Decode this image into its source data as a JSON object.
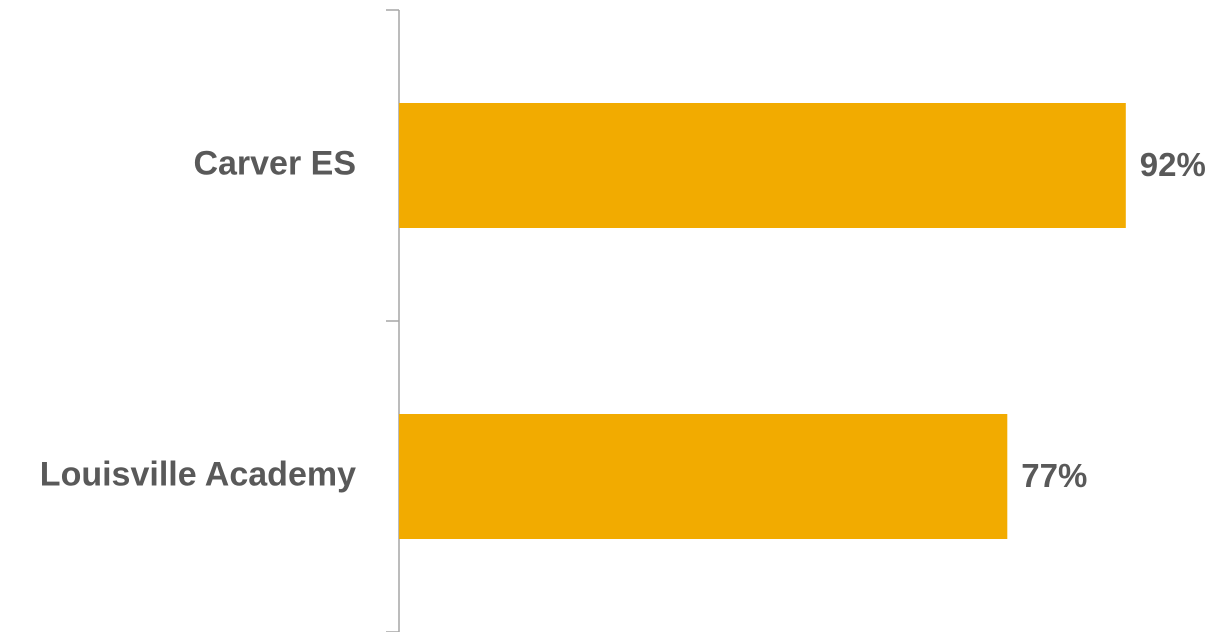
{
  "chart_data": {
    "type": "bar",
    "orientation": "horizontal",
    "categories": [
      "Carver ES",
      "Louisville Academy"
    ],
    "values": [
      92,
      77
    ],
    "value_labels": [
      "92%",
      "77%"
    ],
    "color": "#f2ab00"
  }
}
